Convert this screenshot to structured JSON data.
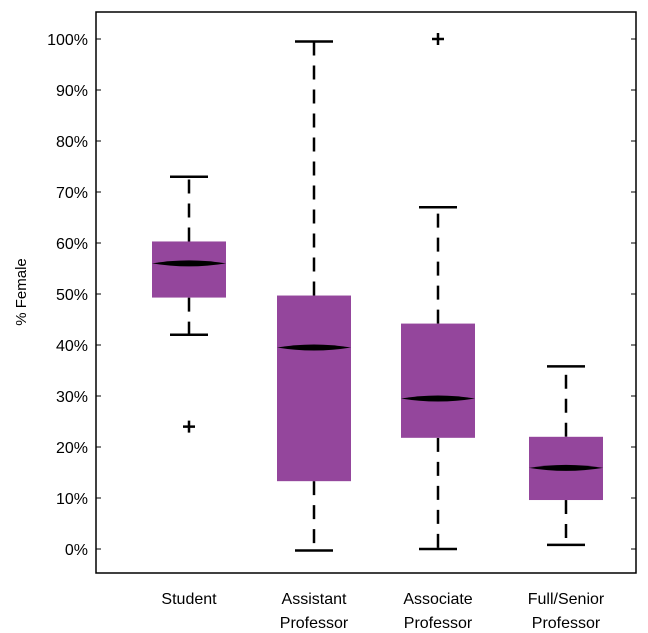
{
  "chart_data": {
    "type": "box",
    "ylabel": "% Female",
    "ylim": [
      -4.5,
      105.5
    ],
    "yticks": [
      0,
      10,
      20,
      30,
      40,
      50,
      60,
      70,
      80,
      90,
      100
    ],
    "ytick_labels": [
      "0%",
      "10%",
      "20%",
      "30%",
      "40%",
      "50%",
      "60%",
      "70%",
      "80%",
      "90%",
      "100%"
    ],
    "box_color": "#94469c",
    "median_color": "#000000",
    "categories": [
      {
        "lines": [
          "Student"
        ],
        "whisker_low": 42,
        "q1": 49.3,
        "median": 56,
        "q3": 60.3,
        "whisker_high": 73,
        "outliers": [
          24
        ]
      },
      {
        "lines": [
          "Assistant",
          "Professor"
        ],
        "whisker_low": -0.3,
        "q1": 13.3,
        "median": 39.5,
        "q3": 49.7,
        "whisker_high": 99.5,
        "outliers": []
      },
      {
        "lines": [
          "Associate",
          "Professor"
        ],
        "whisker_low": 0,
        "q1": 21.8,
        "median": 29.5,
        "q3": 44.2,
        "whisker_high": 67,
        "outliers": [
          100
        ]
      },
      {
        "lines": [
          "Full/Senior",
          "Professor"
        ],
        "whisker_low": 0.8,
        "q1": 9.6,
        "median": 15.9,
        "q3": 22,
        "whisker_high": 35.8,
        "outliers": []
      }
    ]
  }
}
